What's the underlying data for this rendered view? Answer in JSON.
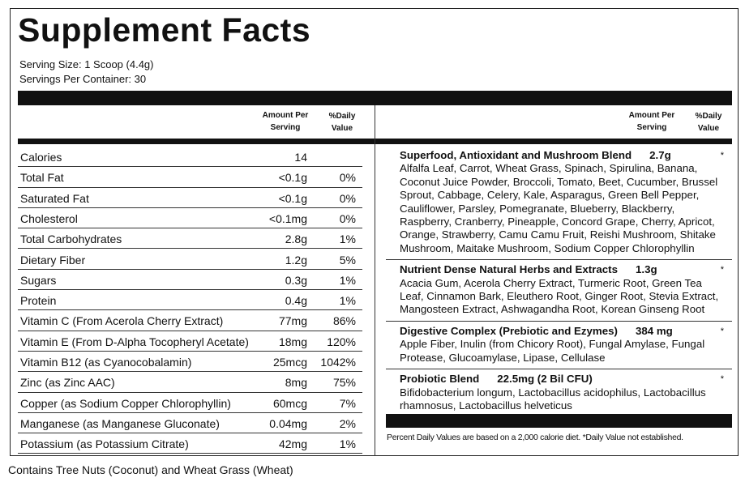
{
  "header": {
    "title": "Supplement Facts",
    "serving_size": "Serving Size: 1 Scoop (4.4g)",
    "servings_per_container": "Servings Per Container: 30"
  },
  "left_table": {
    "columns": [
      "Amount Per Serving",
      "%Daily Value"
    ],
    "rows": [
      {
        "name": "Calories",
        "amount": "14"
      },
      {
        "name": "Total Fat",
        "amount": "<0.1g",
        "dv": "0%"
      },
      {
        "name": "Saturated Fat",
        "amount": "<0.1g",
        "dv": "0%"
      },
      {
        "name": "Cholesterol",
        "amount": "<0.1mg",
        "dv": "0%"
      },
      {
        "name": "Total Carbohydrates",
        "amount": "2.8g",
        "dv": "1%"
      },
      {
        "name": "Dietary Fiber",
        "amount": "1.2g",
        "dv": "5%"
      },
      {
        "name": "Sugars",
        "amount": "0.3g",
        "dv": "1%"
      },
      {
        "name": "Protein",
        "amount": "0.4g",
        "dv": "1%"
      },
      {
        "name": "Vitamin C (From Acerola Cherry Extract)",
        "amount": "77mg",
        "dv": "86%"
      },
      {
        "name": "Vitamin E (From D-Alpha Tocopheryl Acetate)",
        "amount": "18mg",
        "dv": "120%"
      },
      {
        "name": "Vitamin B12 (as Cyanocobalamin)",
        "amount": "25mcg",
        "dv": "1042%"
      },
      {
        "name": "Zinc (as Zinc AAC)",
        "amount": "8mg",
        "dv": "75%"
      },
      {
        "name": "Copper (as Sodium Copper Chlorophyllin)",
        "amount": "60mcg",
        "dv": "7%"
      },
      {
        "name": "Manganese (as Manganese Gluconate)",
        "amount": "0.04mg",
        "dv": "2%"
      },
      {
        "name": "Potassium (as Potassium Citrate)",
        "amount": "42mg",
        "dv": "1%"
      }
    ]
  },
  "right_table": {
    "columns": [
      "Amount Per Serving",
      "%Daily Value"
    ],
    "blends": [
      {
        "name": "Superfood, Antioxidant and Mushroom Blend",
        "amount": "2.7g",
        "dv": "*",
        "ingredients": "Alfalfa Leaf, Carrot, Wheat Grass, Spinach, Spirulina, Banana, Coconut Juice Powder, Broccoli, Tomato, Beet, Cucumber, Brussel Sprout, Cabbage, Celery, Kale, Asparagus, Green Bell Pepper, Cauliflower, Parsley, Pomegranate, Blueberry, Blackberry, Raspberry, Cranberry, Pineapple, Concord Grape, Cherry, Apricot, Orange, Strawberry, Camu Camu Fruit, Reishi Mushroom, Shitake Mushroom, Maitake Mushroom, Sodium Copper Chlorophyllin"
      },
      {
        "name": "Nutrient Dense Natural Herbs and Extracts",
        "amount": "1.3g",
        "dv": "*",
        "ingredients": "Acacia Gum, Acerola Cherry Extract, Turmeric Root, Green Tea Leaf, Cinnamon Bark, Eleuthero Root, Ginger Root, Stevia Extract, Mangosteen Extract, Ashwagandha Root, Korean Ginseng Root"
      },
      {
        "name": "Digestive Complex (Prebiotic and Ezymes)",
        "amount": "384 mg",
        "dv": "*",
        "ingredients": "Apple Fiber, Inulin (from Chicory Root), Fungal Amylase, Fungal Protease, Glucoamylase, Lipase, Cellulase"
      },
      {
        "name": "Probiotic Blend",
        "amount": "22.5mg (2 Bil CFU)",
        "dv": "*",
        "ingredients": "Bifidobacterium longum, Lactobacillus acidophilus, Lactobacillus rhamnosus, Lactobacillus helveticus"
      }
    ],
    "footnote": "Percent Daily Values are based on a 2,000 calorie diet. *Daily Value not established."
  },
  "allergen": "Contains Tree Nuts (Coconut) and Wheat Grass (Wheat)"
}
